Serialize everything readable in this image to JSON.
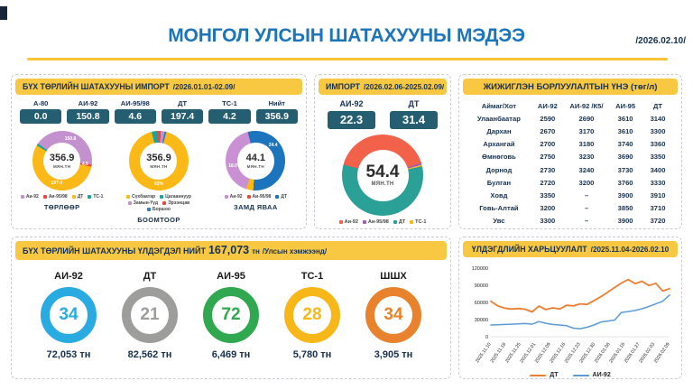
{
  "header": {
    "title": "МОНГОЛ УЛСЫН ШАТАХУУНЫ МЭДЭЭ",
    "date": "/2026.02.10/"
  },
  "panels": {
    "import_total": {
      "title": "БҮХ ТӨРЛИЙН ШАТАХУУНЫ ИМПОРТ",
      "period": "/2026.01.01-02.09/",
      "stats": [
        {
          "label": "А-80",
          "value": "0.0"
        },
        {
          "label": "АИ-92",
          "value": "150.8"
        },
        {
          "label": "АИ-95/98",
          "value": "4.6"
        },
        {
          "label": "ДТ",
          "value": "197.4"
        },
        {
          "label": "ТС-1",
          "value": "4.2"
        },
        {
          "label": "Нийт",
          "value": "356.9"
        }
      ]
    },
    "import_week": {
      "title": "ИМПОРТ",
      "period": "/2026.02.06-2025.02.09/",
      "stats": [
        {
          "label": "АИ-92",
          "value": "22.3"
        },
        {
          "label": "ДТ",
          "value": "31.4"
        }
      ]
    },
    "retail_price": {
      "title": "ЖИЖИГЛЭН БОРЛУУЛАЛТЫН ҮНЭ (төг/л)",
      "columns": [
        "Аймаг/Хот",
        "АИ-92",
        "АИ-92 /К5/",
        "АИ-95",
        "ДТ"
      ],
      "rows": [
        [
          "Улаанбаатар",
          "2590",
          "2690",
          "3610",
          "3140"
        ],
        [
          "Дархан",
          "2670",
          "3170",
          "3610",
          "3300"
        ],
        [
          "Архангай",
          "2700",
          "3180",
          "3740",
          "3360"
        ],
        [
          "Өмнөговь",
          "2750",
          "3230",
          "3690",
          "3350"
        ],
        [
          "Дорнод",
          "2730",
          "3240",
          "3730",
          "3400"
        ],
        [
          "Булган",
          "2720",
          "3200",
          "3760",
          "3330"
        ],
        [
          "Ховд",
          "3350",
          "–",
          "3900",
          "3910"
        ],
        [
          "Говь-Алтай",
          "3200",
          "–",
          "3850",
          "3710"
        ],
        [
          "Увс",
          "3300",
          "–",
          "3900",
          "3720"
        ]
      ]
    },
    "balance": {
      "title_prefix": "БҮХ ТӨРЛИЙН ШАТАХУУНЫ ҮЛДЭГДЭЛ НИЙТ",
      "title_value": "167,073",
      "title_unit": "тн",
      "title_suffix": "/Улсын хэмжээнд/",
      "items": [
        {
          "label": "АИ-92",
          "days": "34",
          "amount": "72,053 тн",
          "color": "#29abe2"
        },
        {
          "label": "ДТ",
          "days": "21",
          "amount": "82,562 тн",
          "color": "#9d9d9c"
        },
        {
          "label": "АИ-95",
          "days": "72",
          "amount": "6,469 тн",
          "color": "#2fa84f"
        },
        {
          "label": "ТС-1",
          "days": "28",
          "amount": "5,780 тн",
          "color": "#f8b719"
        },
        {
          "label": "ШШХ",
          "days": "34",
          "amount": "3,905 тн",
          "color": "#e8822d"
        }
      ]
    },
    "comparison": {
      "title": "ҮЛДЭГДЛИЙН ХАРЬЦУУЛАЛТ",
      "period": "/2025.11.04-2026.02.10"
    }
  },
  "chart_data": [
    {
      "type": "pie",
      "title": "ТӨРЛӨӨР",
      "center": "356.9",
      "center_unit": "МЯН.ТН",
      "start_deg": 305,
      "slices": [
        {
          "name": "Аи-92",
          "value": 150.8,
          "color": "#c392ce",
          "label": "150.8"
        },
        {
          "name": "Аи-95/98",
          "value": 4.6,
          "color": "#e8493c",
          "label": "4.6"
        },
        {
          "name": "ДТ",
          "value": 197.4,
          "color": "#fbb917",
          "label": "197.4",
          "label_deg": 193
        },
        {
          "name": "ТС-1",
          "value": 4.2,
          "color": "#13a89e",
          "label": ""
        }
      ],
      "legend": [
        {
          "name": "Аи-92",
          "color": "#c392ce"
        },
        {
          "name": "Аи-95/98",
          "color": "#e8493c"
        },
        {
          "name": "ДТ",
          "color": "#fbb917"
        },
        {
          "name": "ТС-1",
          "color": "#13a89e"
        }
      ]
    },
    {
      "type": "pie",
      "title": "БООМТООР",
      "center": "356.9",
      "center_unit": "МЯН.ТН",
      "start_deg": 346,
      "slices": [
        {
          "name": "Цагааннуур",
          "value": 3,
          "color": "#13a89e",
          "label": ""
        },
        {
          "name": "Эрээнцав",
          "value": 2,
          "color": "#e8493c",
          "label": ""
        },
        {
          "name": "Замын-Үүд",
          "value": 2,
          "color": "#c392ce",
          "label": ""
        },
        {
          "name": "Боршоо",
          "value": 1,
          "color": "#2d7dd2",
          "label": ""
        },
        {
          "name": "Сүхбаатар",
          "value": 92,
          "color": "#fbb917",
          "label": "92%",
          "label_deg": 180
        }
      ],
      "legend": [
        {
          "name": "Сүхбаатар",
          "color": "#fbb917"
        },
        {
          "name": "Цагааннуур",
          "color": "#13a89e"
        },
        {
          "name": "Замын-Үүд",
          "color": "#c392ce"
        },
        {
          "name": "Эрээнцав",
          "color": "#e8493c"
        },
        {
          "name": "Боршоо",
          "color": "#2d7dd2"
        }
      ]
    },
    {
      "type": "pie",
      "title": "ЗАМД ЯВАА",
      "center": "44.1",
      "center_unit": "МЯН.ТН",
      "start_deg": 345,
      "slices": [
        {
          "name": "ДТ",
          "value": 24.4,
          "color": "#1c75bc",
          "label": "24.4",
          "label_deg": 48
        },
        {
          "name": "ТС-1",
          "value": 1.7,
          "color": "#fbb917",
          "label": ""
        },
        {
          "name": "Аи-92",
          "value": 18.0,
          "color": "#c990d4",
          "label": "18.0",
          "label_deg": 256
        }
      ],
      "legend": [
        {
          "name": "Аи-92",
          "color": "#c990d4"
        },
        {
          "name": "Аи-95/98",
          "color": "#e8493c"
        },
        {
          "name": "ДТ",
          "color": "#1c75bc"
        }
      ]
    },
    {
      "type": "pie",
      "title": "ИМПОРТ",
      "center": "54.4",
      "center_unit": "МЯН.ТН",
      "start_deg": 285,
      "slices": [
        {
          "name": "Аи-92",
          "value": 22.3,
          "color": "#f2614a",
          "label": ""
        },
        {
          "name": "Аи-95/98",
          "value": 0.4,
          "color": "#9c5fb5",
          "label": ""
        },
        {
          "name": "ТС-1",
          "value": 0.3,
          "color": "#fbb917",
          "label": ""
        },
        {
          "name": "ДТ",
          "value": 31.4,
          "color": "#2aa096",
          "label": ""
        }
      ],
      "legend": [
        {
          "name": "Аи-92",
          "color": "#f2614a"
        },
        {
          "name": "Аи-95/98",
          "color": "#9c5fb5"
        },
        {
          "name": "ДТ",
          "color": "#2aa096"
        },
        {
          "name": "ТС-1",
          "color": "#fbb917"
        }
      ]
    },
    {
      "type": "line",
      "title": "ҮЛДЭГДЛИЙН ХАРЬЦУУЛАЛТ",
      "ylim": [
        0,
        120000
      ],
      "y_ticks": [
        0,
        30000,
        60000,
        90000,
        120000
      ],
      "x_labels": [
        "2025.11.10",
        "2025.11.18",
        "2025.11.25",
        "2025.12.01",
        "2025.12.09",
        "2025.12.16",
        "2025.12.23",
        "2025.12.30",
        "2026.01.06",
        "2026.01.16",
        "2026.01.27",
        "2026.02.03",
        "2026.02.09"
      ],
      "legend_position": "bottom",
      "series": [
        {
          "name": "ДТ",
          "color": "#ed7d31",
          "values": [
            62000,
            54000,
            50000,
            48500,
            49500,
            48000,
            43500,
            53500,
            47500,
            50500,
            48500,
            55000,
            54000,
            57500,
            56500,
            63000,
            70000,
            78000,
            86000,
            94000,
            100000,
            93000,
            97000,
            89500,
            93500,
            80000,
            84000
          ]
        },
        {
          "name": "АИ-92",
          "color": "#5b9bd5",
          "values": [
            20500,
            21000,
            21500,
            22000,
            22500,
            23000,
            22000,
            26500,
            23500,
            21500,
            20500,
            19500,
            15000,
            14000,
            16500,
            20500,
            25500,
            27500,
            29000,
            42500,
            44000,
            46000,
            49000,
            53000,
            57500,
            62000,
            73000
          ]
        }
      ]
    }
  ]
}
